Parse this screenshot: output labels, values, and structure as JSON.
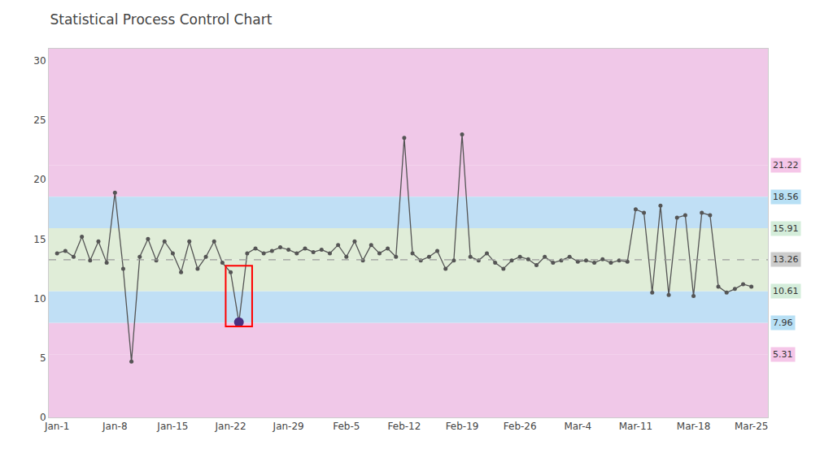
{
  "chart_data": {
    "type": "line",
    "title": "Statistical Process Control Chart",
    "x": [
      0,
      1,
      2,
      3,
      4,
      5,
      6,
      7,
      8,
      9,
      10,
      11,
      12,
      13,
      14,
      15,
      16,
      17,
      18,
      19,
      20,
      21,
      22,
      23,
      24,
      25,
      26,
      27,
      28,
      29,
      30,
      31,
      32,
      33,
      34,
      35,
      36,
      37,
      38,
      39,
      40,
      41,
      42,
      43,
      44,
      45,
      46,
      47,
      48,
      49,
      50,
      51,
      52,
      53,
      54,
      55,
      56,
      57,
      58,
      59,
      60,
      61,
      62,
      63,
      64,
      65,
      66,
      67,
      68,
      69,
      70,
      71,
      72,
      73,
      74,
      75,
      76,
      77,
      78,
      79,
      80,
      81,
      82,
      83,
      84
    ],
    "values": [
      13.8,
      14.0,
      13.5,
      15.2,
      13.2,
      14.8,
      13.0,
      18.9,
      12.5,
      4.7,
      13.5,
      15.0,
      13.2,
      14.8,
      13.8,
      12.2,
      14.8,
      12.5,
      13.5,
      14.8,
      13.0,
      12.2,
      8.0,
      13.8,
      14.2,
      13.8,
      14.0,
      14.3,
      14.1,
      13.8,
      14.2,
      13.9,
      14.1,
      13.8,
      14.5,
      13.5,
      14.8,
      13.2,
      14.5,
      13.8,
      14.2,
      13.5,
      23.5,
      13.8,
      13.2,
      13.5,
      14.0,
      12.5,
      13.2,
      23.8,
      13.5,
      13.2,
      13.8,
      13.0,
      12.5,
      13.2,
      13.5,
      13.3,
      12.8,
      13.5,
      13.0,
      13.2,
      13.5,
      13.1,
      13.2,
      13.0,
      13.3,
      13.0,
      13.2,
      13.1,
      17.5,
      17.2,
      10.5,
      17.8,
      10.3,
      16.8,
      17.0,
      10.2,
      17.2,
      17.0,
      11.0,
      10.5,
      10.8,
      11.2,
      11.0
    ],
    "color": "#555555",
    "marker": "circle",
    "xlim": [
      -1,
      86
    ],
    "xticks": [
      {
        "value": 0,
        "label": "Jan-1"
      },
      {
        "value": 7,
        "label": "Jan-8"
      },
      {
        "value": 14,
        "label": "Jan-15"
      },
      {
        "value": 21,
        "label": "Jan-22"
      },
      {
        "value": 28,
        "label": "Jan-29"
      },
      {
        "value": 35,
        "label": "Feb-5"
      },
      {
        "value": 42,
        "label": "Feb-12"
      },
      {
        "value": 49,
        "label": "Feb-19"
      },
      {
        "value": 56,
        "label": "Feb-26"
      },
      {
        "value": 63,
        "label": "Mar-4"
      },
      {
        "value": 70,
        "label": "Mar-11"
      },
      {
        "value": 77,
        "label": "Mar-18"
      },
      {
        "value": 84,
        "label": "Mar-25"
      }
    ],
    "ylim": [
      0,
      31
    ],
    "yticks": [
      0,
      5,
      10,
      15,
      20,
      25,
      30
    ],
    "grid": false,
    "bands": [
      {
        "from": 0,
        "to": 5.31,
        "color": "#f0c8e8"
      },
      {
        "from": 21.22,
        "to": 31,
        "color": "#f0c8e8"
      },
      {
        "from": 5.31,
        "to": 7.96,
        "color": "#f0c8e8"
      },
      {
        "from": 18.56,
        "to": 21.22,
        "color": "#f0c8e8"
      },
      {
        "from": 7.96,
        "to": 10.61,
        "color": "#c0dff5"
      },
      {
        "from": 15.91,
        "to": 18.56,
        "color": "#c0dff5"
      },
      {
        "from": 10.61,
        "to": 13.26,
        "color": "#e0edd8"
      },
      {
        "from": 13.26,
        "to": 15.91,
        "color": "#e0edd8"
      }
    ],
    "mean": {
      "value": 13.26,
      "color": "#999999",
      "line_style": "dashed"
    },
    "limits": [
      {
        "value": 21.22,
        "color": "#f5c6e8"
      },
      {
        "value": 18.56,
        "color": "#b8e0f5"
      },
      {
        "value": 15.91,
        "color": "#d4edda"
      },
      {
        "value": 13.26,
        "color": "#cccccc"
      },
      {
        "value": 10.61,
        "color": "#d4edda"
      },
      {
        "value": 7.96,
        "color": "#b8e0f5"
      },
      {
        "value": 5.31,
        "color": "#f5c6e8"
      }
    ],
    "highlight_rect": {
      "x": 20.4,
      "y": 7.65,
      "width": 3.2,
      "height": 5.1,
      "color": "red"
    },
    "highlight_points": {
      "x": [
        22
      ],
      "values": [
        8.0
      ],
      "color": "#4a3080",
      "marker": "circle"
    }
  }
}
